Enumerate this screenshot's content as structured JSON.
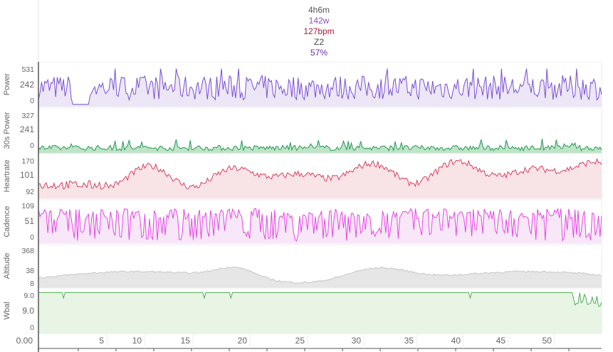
{
  "summary": {
    "duration": "4h6m",
    "power": "142w",
    "heartrate": "127bpm",
    "zone": "Z2",
    "percent": "57%",
    "colors": {
      "duration": "#555555",
      "power": "#8a4fc4",
      "heartrate": "#b0183a",
      "zone": "#444444",
      "percent": "#6a2fae"
    }
  },
  "panels": [
    {
      "id": "power",
      "name": "Power",
      "ticks": [
        "531",
        "242",
        "0"
      ],
      "highlight_index": 1,
      "highlight_color": "#7b43c9",
      "line_color": "#7a4fd1",
      "fill_color": "#ede6f7"
    },
    {
      "id": "power30",
      "name": "30s Power",
      "ticks": [
        "327",
        "241",
        "0"
      ],
      "highlight_index": 1,
      "highlight_color": "#7b43c9",
      "line_color": "#1f9a57",
      "fill_color": "#bfe3c7",
      "hot_color": "#f1c232"
    },
    {
      "id": "heartrate",
      "name": "Heartrate",
      "ticks": [
        "170",
        "101",
        "92"
      ],
      "highlight_index": 1,
      "highlight_color": "#c3163a",
      "line_color": "#d6405f",
      "fill_color": "#f8e3e7"
    },
    {
      "id": "cadence",
      "name": "Cadence",
      "ticks": [
        "109",
        "51",
        "0"
      ],
      "highlight_index": 1,
      "highlight_color": "#cf2fcf",
      "line_color": "#e445e4",
      "fill_color": "#f8e7f8"
    },
    {
      "id": "altitude",
      "name": "Altitude",
      "ticks": [
        "368",
        "38",
        "8"
      ],
      "highlight_index": -1,
      "highlight_color": "#666666",
      "line_color": "#c7c7c7",
      "fill_color": "#e6e6e6"
    },
    {
      "id": "wbal",
      "name": "Wbal",
      "ticks": [
        "9.0",
        "9.0",
        "0"
      ],
      "highlight_index": 1,
      "highlight_color": "#3b9a3b",
      "line_color": "#4caf50",
      "fill_color": "#e8f4e4"
    }
  ],
  "x_axis": {
    "origin_label": "0.00",
    "ticks": [
      "5",
      "10",
      "15",
      "20",
      "25",
      "30",
      "35",
      "40",
      "45",
      "50"
    ]
  }
}
